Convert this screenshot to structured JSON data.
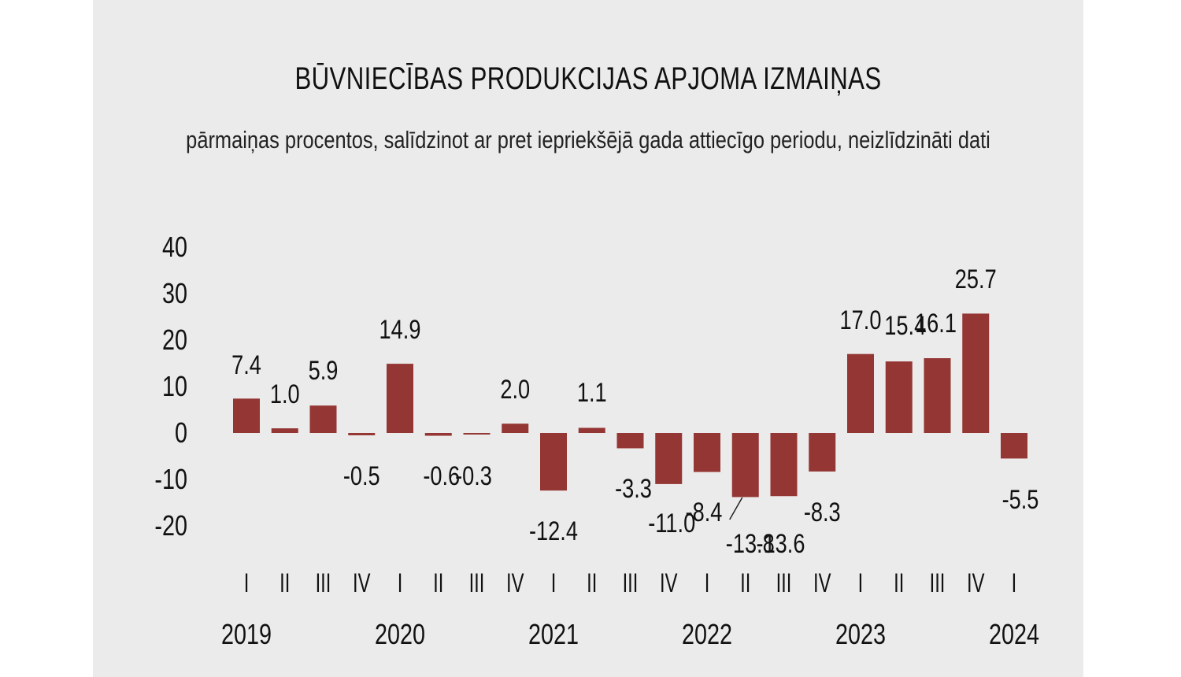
{
  "chart_data": {
    "type": "bar",
    "title": "BŪVNIECĪBAS PRODUKCIJAS APJOMA IZMAIŅAS",
    "subtitle": "pārmaiņas procentos, salīdzinot ar pret iepriekšējā gada attiecīgo periodu, neizlīdzināti dati",
    "categories": [
      "I",
      "II",
      "III",
      "IV",
      "I",
      "II",
      "III",
      "IV",
      "I",
      "II",
      "III",
      "IV",
      "I",
      "II",
      "III",
      "IV",
      "I",
      "II",
      "III",
      "IV",
      "I"
    ],
    "years": [
      "2019",
      "2020",
      "2021",
      "2022",
      "2023",
      "2024"
    ],
    "values": [
      7.4,
      1.0,
      5.9,
      -0.5,
      14.9,
      -0.6,
      -0.3,
      2.0,
      -12.4,
      1.1,
      -3.3,
      -11.0,
      -8.4,
      -13.8,
      -13.6,
      -8.3,
      17.0,
      15.4,
      16.1,
      25.7,
      -5.5
    ],
    "labels": [
      "7.4",
      "1.0",
      "5.9",
      "-0.5",
      "14.9",
      "-0.6",
      "-0.3",
      "2.0",
      "-12.4",
      "1.1",
      "-3.3",
      "-11.0",
      "-8.4",
      "-13.8",
      "-13.6",
      "-8.3",
      "17.0",
      "15.4",
      "16.1",
      "25.7",
      "-5.5"
    ],
    "yticks": [
      "40",
      "30",
      "20",
      "10",
      "0",
      "-10",
      "-20"
    ],
    "ylim": [
      -20,
      40
    ],
    "bar_color": "#943634",
    "background": "#ebebeb",
    "grid": false,
    "legend": "none"
  }
}
